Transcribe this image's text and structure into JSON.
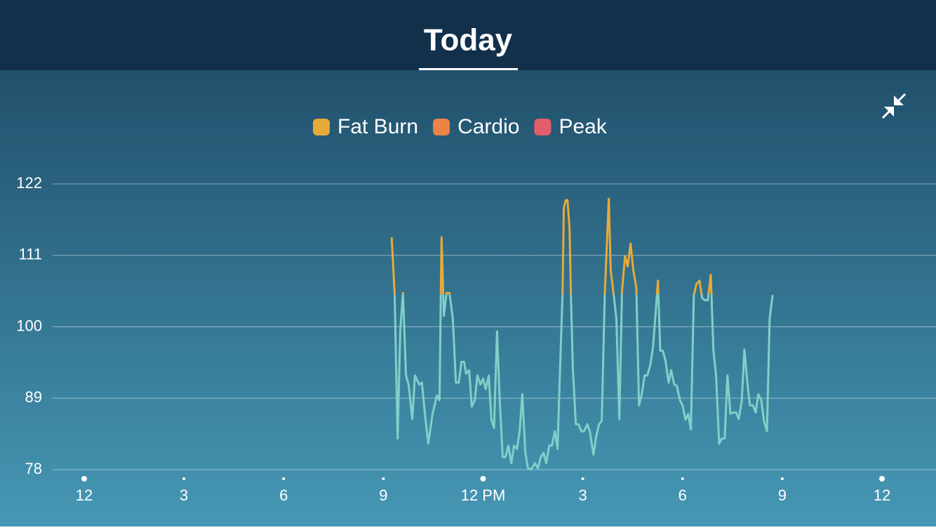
{
  "header": {
    "title": "Today"
  },
  "chart_data": {
    "type": "line",
    "legend": [
      {
        "name": "Fat Burn",
        "color": "#e6aa3a",
        "from": 105
      },
      {
        "name": "Cardio",
        "color": "#ec8446"
      },
      {
        "name": "Peak",
        "color": "#e35d6a"
      }
    ],
    "color": "#7fd0c8",
    "x": [
      9.25,
      9.34,
      9.43,
      9.51,
      9.59,
      9.68,
      9.76,
      9.87,
      9.95,
      10.08,
      10.16,
      10.25,
      10.35,
      10.48,
      10.61,
      10.69,
      10.75,
      10.82,
      10.9,
      10.99,
      11.09,
      11.18,
      11.27,
      11.35,
      11.43,
      11.49,
      11.58,
      11.66,
      11.75,
      11.83,
      11.92,
      12.0,
      12.08,
      12.17,
      12.25,
      12.33,
      12.42,
      12.5,
      12.59,
      12.67,
      12.76,
      12.85,
      12.93,
      13.02,
      13.1,
      13.18,
      13.27,
      13.35,
      13.44,
      13.56,
      13.65,
      13.73,
      13.82,
      13.9,
      13.99,
      14.07,
      14.16,
      14.24,
      14.32,
      14.39,
      14.43,
      14.49,
      14.54,
      14.6,
      14.64,
      14.7,
      14.79,
      14.87,
      14.96,
      15.04,
      15.13,
      15.21,
      15.32,
      15.41,
      15.49,
      15.57,
      15.66,
      15.78,
      15.84,
      15.93,
      16.01,
      16.1,
      16.18,
      16.27,
      16.35,
      16.44,
      16.52,
      16.61,
      16.69,
      16.78,
      16.86,
      16.94,
      17.03,
      17.11,
      17.2,
      17.26,
      17.33,
      17.41,
      17.49,
      17.58,
      17.66,
      17.75,
      17.83,
      17.92,
      18.0,
      18.09,
      18.17,
      18.25,
      18.34,
      18.42,
      18.51,
      18.59,
      18.68,
      18.76,
      18.85,
      18.93,
      19.01,
      19.1,
      19.18,
      19.27,
      19.35,
      19.44,
      19.52,
      19.61,
      19.69,
      19.78,
      19.86,
      19.95,
      20.03,
      20.12,
      20.2,
      20.28,
      20.37,
      20.45,
      20.54,
      20.62,
      20.71
    ],
    "values": [
      113.8,
      104.9,
      82.8,
      99.5,
      105.2,
      92.5,
      91.1,
      85.8,
      92.5,
      91.1,
      91.4,
      86.6,
      82.0,
      86.6,
      89.4,
      88.7,
      113.8,
      101.7,
      105.2,
      105.2,
      101.2,
      91.4,
      91.4,
      94.6,
      94.6,
      92.8,
      93.3,
      87.7,
      88.7,
      92.5,
      91.1,
      92.0,
      90.4,
      92.5,
      85.7,
      84.4,
      99.3,
      88.7,
      79.9,
      79.9,
      81.7,
      79.0,
      81.7,
      81.2,
      83.9,
      89.6,
      80.6,
      78.2,
      78.0,
      79.0,
      78.2,
      79.9,
      80.6,
      79.0,
      81.7,
      81.7,
      83.9,
      81.2,
      94.1,
      104.9,
      118.4,
      119.5,
      119.5,
      115.2,
      105.2,
      93.6,
      85.0,
      85.0,
      83.9,
      83.9,
      85.0,
      83.9,
      80.3,
      83.3,
      85.0,
      85.5,
      104.9,
      119.7,
      108.7,
      104.9,
      101.2,
      85.8,
      105.5,
      110.9,
      109.3,
      112.8,
      108.7,
      106.0,
      87.9,
      89.8,
      92.5,
      92.5,
      94.1,
      96.8,
      102.8,
      107.1,
      96.3,
      96.3,
      94.7,
      91.4,
      93.3,
      91.1,
      90.9,
      88.7,
      87.9,
      85.7,
      86.6,
      84.2,
      104.9,
      106.6,
      107.1,
      104.4,
      104.1,
      104.1,
      108.0,
      96.3,
      92.5,
      82.0,
      82.8,
      82.8,
      92.5,
      86.6,
      86.8,
      86.8,
      85.8,
      88.5,
      96.5,
      91.4,
      87.9,
      87.9,
      86.8,
      89.6,
      88.7,
      85.5,
      83.9,
      101.2,
      104.9
    ],
    "xlim": [
      0,
      24
    ],
    "xticks": [
      {
        "value": 0,
        "label": "12"
      },
      3,
      6,
      9,
      {
        "value": 12,
        "label": "12 PM"
      },
      {
        "value": 15,
        "label": "3"
      },
      {
        "value": 18,
        "label": "6"
      },
      {
        "value": 21,
        "label": "9"
      },
      {
        "value": 24,
        "label": "12"
      }
    ],
    "ylim": [
      78,
      122
    ],
    "yticks": [
      78,
      89,
      100,
      111,
      122
    ],
    "grid": true
  }
}
